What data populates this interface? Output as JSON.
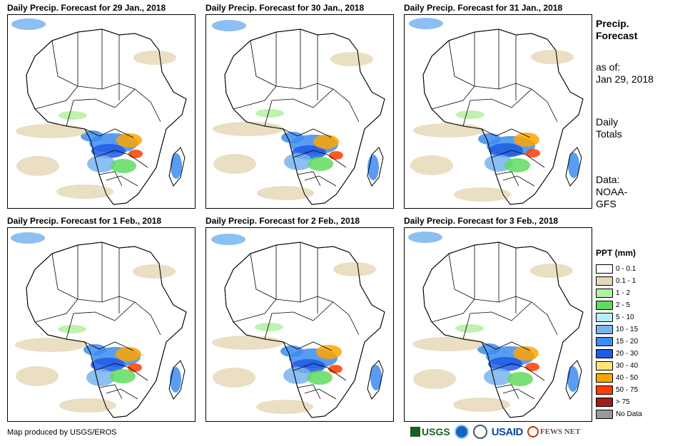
{
  "panels": [
    {
      "title": "Daily Precip. Forecast for 29 Jan., 2018"
    },
    {
      "title": "Daily Precip. Forecast for 30 Jan., 2018"
    },
    {
      "title": "Daily Precip. Forecast for 31 Jan., 2018"
    },
    {
      "title": "Daily Precip. Forecast for 1 Feb., 2018"
    },
    {
      "title": "Daily Precip. Forecast for 2 Feb., 2018"
    },
    {
      "title": "Daily Precip. Forecast for 3 Feb., 2018"
    }
  ],
  "info": {
    "title_line1": "Precip.",
    "title_line2": "Forecast",
    "asof_label": "as of:",
    "asof_date": "Jan 29, 2018",
    "totals_line1": "Daily",
    "totals_line2": "Totals",
    "data_line1": "Data:",
    "data_line2": "NOAA-",
    "data_line3": "GFS"
  },
  "legend": {
    "title": "PPT (mm)",
    "items": [
      {
        "label": "0 - 0.1",
        "color": "#ffffff"
      },
      {
        "label": "0.1 - 1",
        "color": "#e6d8b8"
      },
      {
        "label": "1 - 2",
        "color": "#b4f0a0"
      },
      {
        "label": "2 - 5",
        "color": "#5fdc5f"
      },
      {
        "label": "5 - 10",
        "color": "#b4f0f5"
      },
      {
        "label": "10 - 15",
        "color": "#78b4f0"
      },
      {
        "label": "15 - 20",
        "color": "#3c8cf0"
      },
      {
        "label": "20 - 30",
        "color": "#1e5ae6"
      },
      {
        "label": "30 - 40",
        "color": "#ffe678"
      },
      {
        "label": "40 - 50",
        "color": "#ffa500"
      },
      {
        "label": "50 - 75",
        "color": "#ff3c00"
      },
      {
        "label": "> 75",
        "color": "#a01e1e"
      },
      {
        "label": "No Data",
        "color": "#999999"
      }
    ]
  },
  "footer": {
    "credit": "Map produced by USGS/EROS"
  },
  "logos": {
    "usgs": "USGS",
    "usaid": "USAID",
    "fews": "FEWS NET"
  }
}
